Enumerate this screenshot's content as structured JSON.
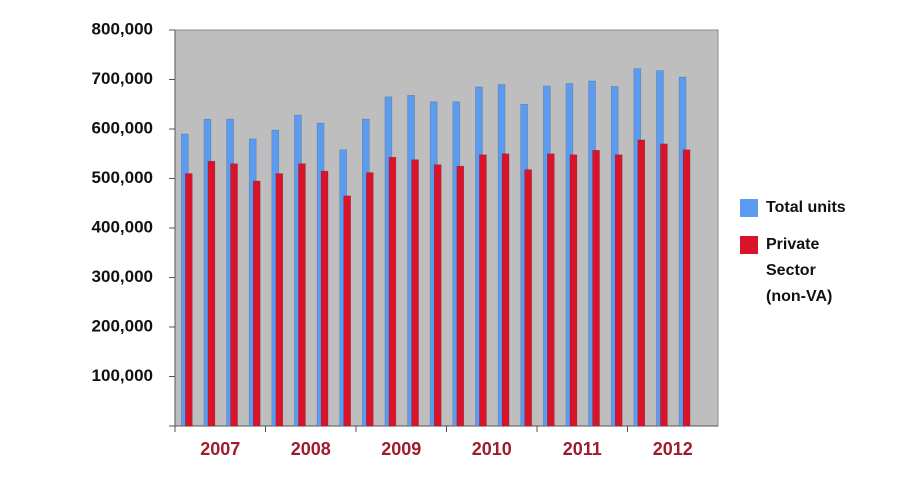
{
  "chart_data": {
    "type": "bar",
    "categories": [
      null,
      null,
      null,
      null,
      null,
      null,
      null,
      null,
      null,
      null,
      null,
      null,
      null,
      null,
      null,
      null,
      null,
      null,
      null,
      null,
      null,
      null,
      null,
      null
    ],
    "groups": [
      "2007",
      "2008",
      "2009",
      "2010",
      "2011",
      "2012"
    ],
    "series": [
      {
        "name": "Total units",
        "color": "#5b9bf0",
        "values": [
          590000,
          620000,
          620000,
          580000,
          598000,
          628000,
          612000,
          558000,
          620000,
          665000,
          668000,
          655000,
          655000,
          685000,
          690000,
          650000,
          687000,
          692000,
          697000,
          686000,
          722000,
          718000,
          705000,
          null
        ]
      },
      {
        "name": "Private Sector (non-VA)",
        "color": "#d9142a",
        "values": [
          510000,
          535000,
          530000,
          495000,
          510000,
          530000,
          515000,
          465000,
          512000,
          543000,
          538000,
          528000,
          525000,
          548000,
          550000,
          518000,
          550000,
          548000,
          557000,
          548000,
          578000,
          570000,
          558000,
          null
        ]
      }
    ],
    "ylim": [
      0,
      800000
    ],
    "yticks": [
      {
        "value": 100000,
        "label": "100,000"
      },
      {
        "value": 200000,
        "label": "200,000"
      },
      {
        "value": 300000,
        "label": "300,000"
      },
      {
        "value": 400000,
        "label": "400,000"
      },
      {
        "value": 500000,
        "label": "500,000"
      },
      {
        "value": 600000,
        "label": "600,000"
      },
      {
        "value": 700000,
        "label": "700,000"
      },
      {
        "value": 800000,
        "label": "800,000"
      }
    ],
    "grid": false
  }
}
